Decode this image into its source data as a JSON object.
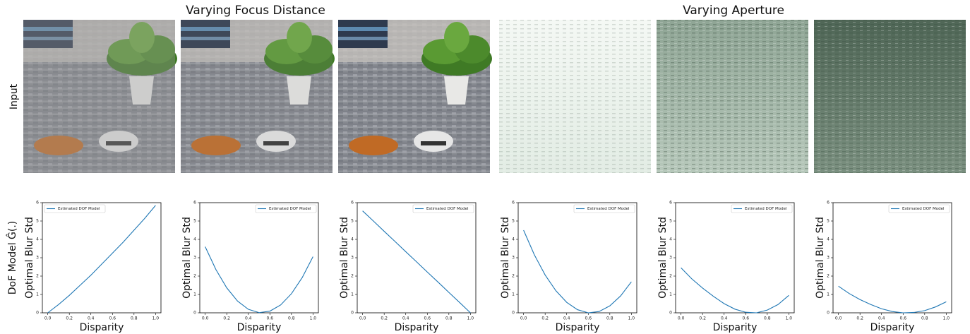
{
  "figure": {
    "group_titles": [
      "Varying Focus Distance",
      "Varying Aperture"
    ],
    "row_labels": [
      "Input",
      "DoF Model Ĝ(.)"
    ]
  },
  "chart_data": [
    {
      "type": "line",
      "xlabel": "Disparity",
      "ylabel": "Optimal Blur Std",
      "legend": "upper left",
      "x": [
        0,
        0.1,
        0.2,
        0.3,
        0.4,
        0.5,
        0.6,
        0.7,
        0.8,
        0.9,
        1.0
      ],
      "series": [
        {
          "name": "Estimated DOF Model",
          "color": "#1f77b4",
          "values": [
            0,
            0.45,
            0.95,
            1.5,
            2.05,
            2.65,
            3.25,
            3.85,
            4.5,
            5.15,
            5.85
          ]
        }
      ],
      "xlim": [
        -0.05,
        1.05
      ],
      "xticks": [
        {
          "value": 0,
          "label": "0.0"
        },
        0.2,
        0.4,
        0.6,
        0.8,
        {
          "value": 1,
          "label": "1.0"
        }
      ],
      "ylim": [
        0,
        6
      ],
      "yticks": [
        0,
        1,
        2,
        3,
        4,
        5,
        6
      ]
    },
    {
      "type": "line",
      "xlabel": "Disparity",
      "ylabel": "Optimal Blur Std",
      "legend": "upper right",
      "x": [
        0,
        0.1,
        0.2,
        0.3,
        0.4,
        0.5,
        0.6,
        0.7,
        0.8,
        0.9,
        1.0
      ],
      "series": [
        {
          "name": "Estimated DOF Model",
          "color": "#1f77b4",
          "values": [
            3.6,
            2.35,
            1.36,
            0.64,
            0.19,
            0.01,
            0.09,
            0.43,
            1.04,
            1.92,
            3.06
          ]
        }
      ],
      "xlim": [
        -0.05,
        1.05
      ],
      "xticks": [
        {
          "value": 0,
          "label": "0.0"
        },
        0.2,
        0.4,
        0.6,
        0.8,
        {
          "value": 1,
          "label": "1.0"
        }
      ],
      "ylim": [
        0,
        6
      ],
      "yticks": [
        0,
        1,
        2,
        3,
        4,
        5,
        6
      ]
    },
    {
      "type": "line",
      "xlabel": "Disparity",
      "ylabel": "Optimal Blur Std",
      "legend": "upper right",
      "x": [
        0,
        0.1,
        0.2,
        0.3,
        0.4,
        0.5,
        0.6,
        0.7,
        0.8,
        0.9,
        1.0
      ],
      "series": [
        {
          "name": "Estimated DOF Model",
          "color": "#1f77b4",
          "values": [
            5.55,
            5.0,
            4.44,
            3.89,
            3.33,
            2.78,
            2.22,
            1.67,
            1.11,
            0.56,
            0
          ]
        }
      ],
      "xlim": [
        -0.05,
        1.05
      ],
      "xticks": [
        {
          "value": 0,
          "label": "0.0"
        },
        0.2,
        0.4,
        0.6,
        0.8,
        {
          "value": 1,
          "label": "1.0"
        }
      ],
      "ylim": [
        0,
        6
      ],
      "yticks": [
        0,
        1,
        2,
        3,
        4,
        5,
        6
      ]
    },
    {
      "type": "line",
      "xlabel": "Disparity",
      "ylabel": "Optimal Blur Std",
      "legend": "upper right",
      "x": [
        0,
        0.1,
        0.2,
        0.3,
        0.4,
        0.5,
        0.6,
        0.7,
        0.8,
        0.9,
        1.0
      ],
      "series": [
        {
          "name": "Estimated DOF Model",
          "color": "#1f77b4",
          "values": [
            4.5,
            3.16,
            2.06,
            1.2,
            0.57,
            0.17,
            0,
            0.07,
            0.38,
            0.92,
            1.69
          ]
        }
      ],
      "xlim": [
        -0.05,
        1.05
      ],
      "xticks": [
        {
          "value": 0,
          "label": "0.0"
        },
        0.2,
        0.4,
        0.6,
        0.8,
        {
          "value": 1,
          "label": "1.0"
        }
      ],
      "ylim": [
        0,
        6
      ],
      "yticks": [
        0,
        1,
        2,
        3,
        4,
        5,
        6
      ]
    },
    {
      "type": "line",
      "xlabel": "Disparity",
      "ylabel": "Optimal Blur Std",
      "legend": "upper right",
      "x": [
        0,
        0.1,
        0.2,
        0.3,
        0.4,
        0.5,
        0.6,
        0.7,
        0.8,
        0.9,
        1.0
      ],
      "series": [
        {
          "name": "Estimated DOF Model",
          "color": "#1f77b4",
          "values": [
            2.45,
            1.85,
            1.35,
            0.9,
            0.5,
            0.2,
            0.03,
            0,
            0.15,
            0.45,
            0.95
          ]
        }
      ],
      "xlim": [
        -0.05,
        1.05
      ],
      "xticks": [
        {
          "value": 0,
          "label": "0.0"
        },
        0.2,
        0.4,
        0.6,
        0.8,
        {
          "value": 1,
          "label": "1.0"
        }
      ],
      "ylim": [
        0,
        6
      ],
      "yticks": [
        0,
        1,
        2,
        3,
        4,
        5,
        6
      ]
    },
    {
      "type": "line",
      "xlabel": "Disparity",
      "ylabel": "Optimal Blur Std",
      "legend": "upper right",
      "x": [
        0,
        0.1,
        0.2,
        0.3,
        0.4,
        0.5,
        0.6,
        0.7,
        0.8,
        0.9,
        1.0
      ],
      "series": [
        {
          "name": "Estimated DOF Model",
          "color": "#1f77b4",
          "values": [
            1.45,
            1.05,
            0.72,
            0.45,
            0.22,
            0.07,
            0,
            0.02,
            0.12,
            0.32,
            0.6
          ]
        }
      ],
      "xlim": [
        -0.05,
        1.05
      ],
      "xticks": [
        {
          "value": 0,
          "label": "0.0"
        },
        0.2,
        0.4,
        0.6,
        0.8,
        {
          "value": 1,
          "label": "1.0"
        }
      ],
      "ylim": [
        0,
        6
      ],
      "yticks": [
        0,
        1,
        2,
        3,
        4,
        5,
        6
      ]
    }
  ]
}
